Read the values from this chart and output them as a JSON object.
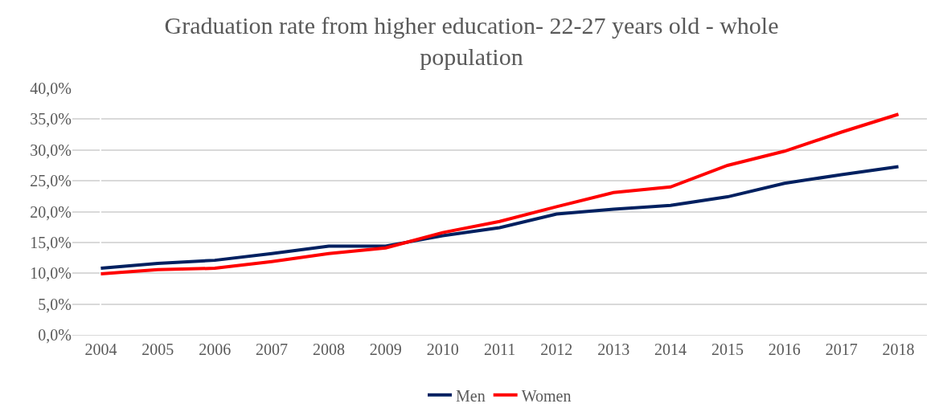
{
  "chart_data": {
    "type": "line",
    "title": "Graduation rate from higher education- 22-27 years old - whole population",
    "categories": [
      "2004",
      "2005",
      "2006",
      "2007",
      "2008",
      "2009",
      "2010",
      "2011",
      "2012",
      "2013",
      "2014",
      "2015",
      "2016",
      "2017",
      "2018"
    ],
    "series": [
      {
        "name": "Men",
        "color": "#002060",
        "values": [
          10.8,
          11.6,
          12.1,
          13.2,
          14.4,
          14.4,
          16.1,
          17.4,
          19.6,
          20.4,
          21.0,
          22.4,
          24.6,
          26.0,
          27.3
        ]
      },
      {
        "name": "Women",
        "color": "#ff0000",
        "values": [
          9.9,
          10.6,
          10.8,
          11.9,
          13.2,
          14.1,
          16.6,
          18.4,
          20.8,
          23.1,
          24.0,
          27.5,
          29.8,
          32.9,
          35.8
        ]
      }
    ],
    "ylim": [
      0,
      40
    ],
    "yticks": [
      {
        "value": 0,
        "label": "0,0%"
      },
      {
        "value": 5,
        "label": "5,0%"
      },
      {
        "value": 10,
        "label": "10,0%"
      },
      {
        "value": 15,
        "label": "15,0%"
      },
      {
        "value": 20,
        "label": "20,0%"
      },
      {
        "value": 25,
        "label": "25,0%"
      },
      {
        "value": 30,
        "label": "30,0%"
      },
      {
        "value": 35,
        "label": "35,0%"
      },
      {
        "value": 40,
        "label": "40,0%"
      }
    ],
    "grid": "y",
    "legend": "bottom",
    "marker": "none",
    "line_style": "solid"
  }
}
